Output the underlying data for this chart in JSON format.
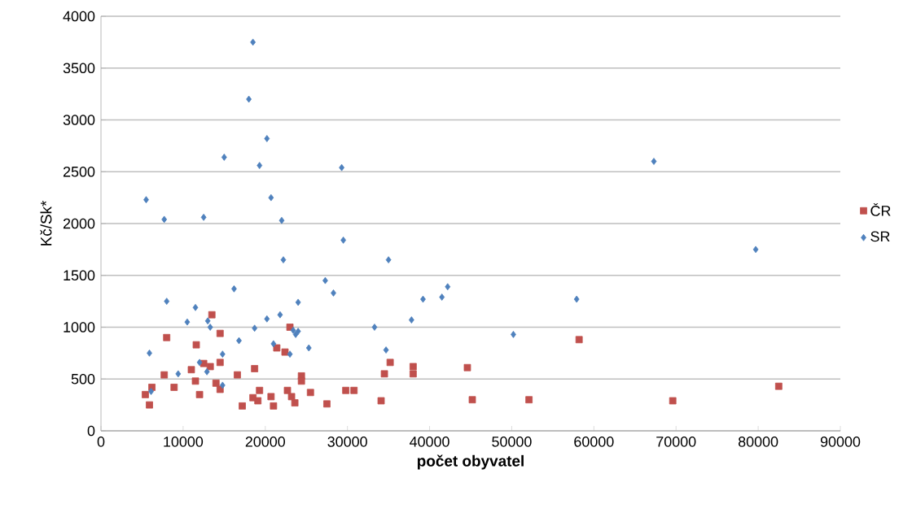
{
  "chart_data": {
    "type": "scatter",
    "xlabel": "**počet obyvatel**",
    "ylabel": "Kč/Sk*",
    "xlim": [
      0,
      90000
    ],
    "ylim": [
      0,
      4000
    ],
    "xticks": [
      0,
      10000,
      20000,
      30000,
      40000,
      50000,
      60000,
      70000,
      80000,
      90000
    ],
    "yticks": [
      0,
      500,
      1000,
      1500,
      2000,
      2500,
      3000,
      3500,
      4000
    ],
    "grid": "y",
    "legend": "right",
    "series": [
      {
        "name": "ČR",
        "color": "#c0504d",
        "marker": "square",
        "x": [
          13500,
          23000,
          8000,
          11600,
          14500,
          21400,
          22400,
          12500,
          13300,
          14500,
          18700,
          11000,
          7700,
          11500,
          16600,
          14000,
          14500,
          8900,
          6200,
          5400,
          5900,
          12000,
          19300,
          17200,
          18500,
          19100,
          20700,
          21000,
          22700,
          23200,
          23600,
          24400,
          24400,
          25500,
          27500,
          29800,
          30800,
          34100,
          34500,
          35200,
          38000,
          38000,
          44600,
          45200,
          52100,
          58200,
          69600,
          82500
        ],
        "values": [
          1120,
          1000,
          900,
          830,
          940,
          800,
          760,
          650,
          620,
          660,
          600,
          590,
          540,
          480,
          540,
          460,
          400,
          420,
          420,
          350,
          250,
          350,
          390,
          240,
          320,
          290,
          330,
          240,
          390,
          330,
          270,
          530,
          480,
          370,
          260,
          390,
          390,
          290,
          550,
          660,
          620,
          550,
          610,
          300,
          300,
          880,
          290,
          430
        ]
      },
      {
        "name": "SR",
        "color": "#4f81bd",
        "marker": "diamond",
        "x": [
          18500,
          18000,
          20200,
          15000,
          19300,
          29300,
          5500,
          20700,
          7700,
          12500,
          22000,
          29500,
          35000,
          22200,
          67300,
          79700,
          27300,
          28300,
          16200,
          8000,
          11500,
          24000,
          10500,
          13000,
          20200,
          21800,
          13300,
          18700,
          23400,
          23700,
          24000,
          33300,
          16800,
          21000,
          25300,
          34700,
          5900,
          12000,
          23000,
          14800,
          12900,
          9400,
          6100,
          14800,
          42200,
          41500,
          39200,
          57900,
          37800,
          50200
        ],
        "values": [
          3750,
          3200,
          2820,
          2640,
          2560,
          2540,
          2230,
          2250,
          2040,
          2060,
          2030,
          1840,
          1650,
          1650,
          2600,
          1750,
          1450,
          1330,
          1370,
          1250,
          1190,
          1240,
          1050,
          1060,
          1080,
          1120,
          1000,
          990,
          970,
          930,
          960,
          1000,
          870,
          840,
          800,
          780,
          750,
          660,
          740,
          740,
          570,
          550,
          380,
          440,
          1390,
          1290,
          1270,
          1270,
          1070,
          930
        ]
      }
    ]
  }
}
